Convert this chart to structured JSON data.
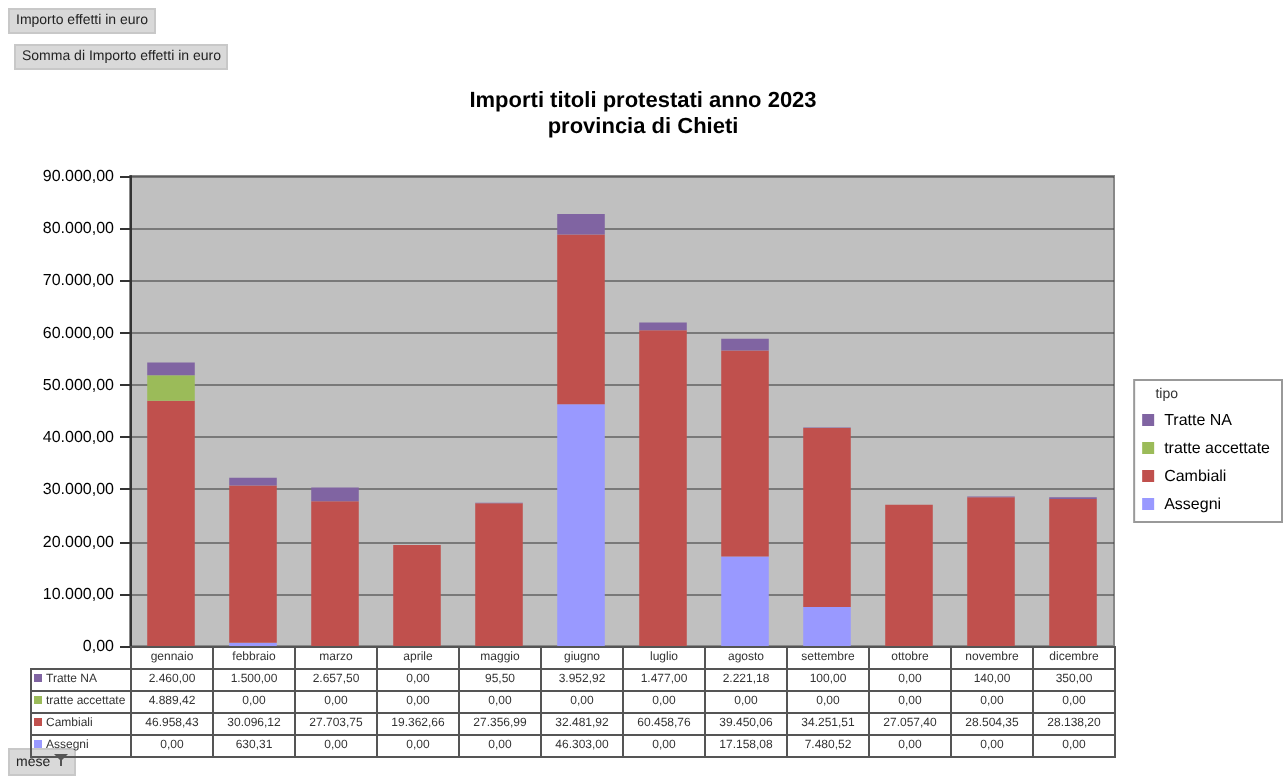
{
  "chart_data": {
    "type": "bar",
    "title": "Importi titoli protestati anno 2023",
    "subtitle": "provincia di Chieti",
    "legend_title": "tipo",
    "annotations": [
      "Importo effetti in euro",
      "Somma di Importo effetti in euro",
      "mese"
    ],
    "categories": [
      "gennaio",
      "febbraio",
      "marzo",
      "aprile",
      "maggio",
      "giugno",
      "luglio",
      "agosto",
      "settembre",
      "ottobre",
      "novembre",
      "dicembre"
    ],
    "stacked": true,
    "series": [
      {
        "name": "Assegni",
        "color": "#9999ff",
        "values": [
          0,
          630.31,
          0,
          0,
          0,
          46303,
          0,
          17158.08,
          7480.52,
          0,
          0,
          0
        ],
        "value_labels": [
          "0,00",
          "630,31",
          "0,00",
          "0,00",
          "0,00",
          "46.303,00",
          "0,00",
          "17.158,08",
          "7.480,52",
          "0,00",
          "0,00",
          "0,00"
        ]
      },
      {
        "name": "Cambiali",
        "color": "#c0504d",
        "values": [
          46958.43,
          30096.12,
          27703.75,
          19362.66,
          27356.99,
          32481.92,
          60458.76,
          39450.06,
          34251.51,
          27057.4,
          28504.35,
          28138.2
        ],
        "value_labels": [
          "46.958,43",
          "30.096,12",
          "27.703,75",
          "19.362,66",
          "27.356,99",
          "32.481,92",
          "60.458,76",
          "39.450,06",
          "34.251,51",
          "27.057,40",
          "28.504,35",
          "28.138,20"
        ]
      },
      {
        "name": "tratte accettate",
        "color": "#9bbb59",
        "values": [
          4889.42,
          0,
          0,
          0,
          0,
          0,
          0,
          0,
          0,
          0,
          0,
          0
        ],
        "value_labels": [
          "4.889,42",
          "0,00",
          "0,00",
          "0,00",
          "0,00",
          "0,00",
          "0,00",
          "0,00",
          "0,00",
          "0,00",
          "0,00",
          "0,00"
        ]
      },
      {
        "name": "Tratte NA",
        "color": "#8064a2",
        "values": [
          2460,
          1500,
          2657.5,
          0,
          95.5,
          3952.92,
          1477,
          2221.18,
          100,
          0,
          140,
          350
        ],
        "value_labels": [
          "2.460,00",
          "1.500,00",
          "2.657,50",
          "0,00",
          "95,50",
          "3.952,92",
          "1.477,00",
          "2.221,18",
          "100,00",
          "0,00",
          "140,00",
          "350,00"
        ]
      }
    ],
    "ylim": [
      0,
      90000
    ],
    "yticks": [
      {
        "value": 0,
        "label": "0,00"
      },
      {
        "value": 10000,
        "label": "10.000,00"
      },
      {
        "value": 20000,
        "label": "20.000,00"
      },
      {
        "value": 30000,
        "label": "30.000,00"
      },
      {
        "value": 40000,
        "label": "40.000,00"
      },
      {
        "value": 50000,
        "label": "50.000,00"
      },
      {
        "value": 60000,
        "label": "60.000,00"
      },
      {
        "value": 70000,
        "label": "70.000,00"
      },
      {
        "value": 80000,
        "label": "80.000,00"
      },
      {
        "value": 90000,
        "label": "90.000,00"
      }
    ],
    "grid": "y",
    "legend": "right"
  }
}
